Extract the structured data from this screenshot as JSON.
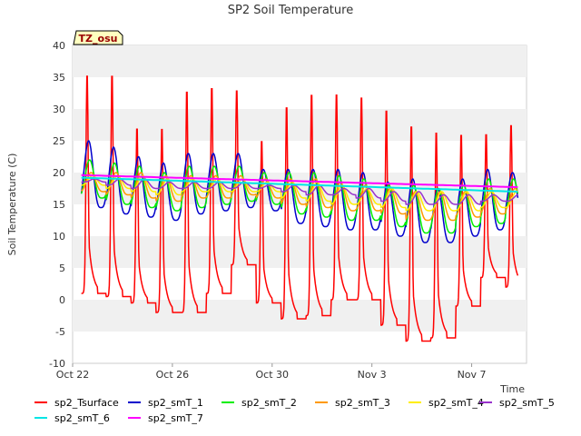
{
  "chart_data": {
    "type": "line",
    "title": "SP2 Soil Temperature",
    "xlabel": "Time",
    "ylabel": "Soil Temperature (C)",
    "ylim": [
      -10,
      40
    ],
    "xlim_days": [
      0,
      18.2
    ],
    "x_unit": "days since Oct 22",
    "x_ticks": [
      {
        "day": 0,
        "label": "Oct 22"
      },
      {
        "day": 4,
        "label": "Oct 26"
      },
      {
        "day": 8,
        "label": "Oct 30"
      },
      {
        "day": 12,
        "label": "Nov 3"
      },
      {
        "day": 16,
        "label": "Nov 7"
      }
    ],
    "y_ticks": [
      -10,
      -5,
      0,
      5,
      10,
      15,
      20,
      25,
      30,
      35,
      40
    ],
    "grid": "horizontal bands",
    "annotation": "TZ_osu",
    "series": [
      {
        "name": "sp2_Tsurface",
        "color": "#ff0000",
        "daily_max": [
          36,
          36,
          27.5,
          27.5,
          33.5,
          34,
          33.5,
          25.5,
          31,
          33,
          33,
          32.5,
          30.5,
          28,
          27,
          26.5,
          26.5,
          28
        ],
        "daily_min": [
          1,
          0.5,
          -0.5,
          -2,
          -2,
          1,
          5.5,
          -0.5,
          -3,
          -2.5,
          0,
          0,
          -4,
          -6.5,
          -6,
          -1,
          3.5,
          2
        ]
      },
      {
        "name": "sp2_smT_1",
        "color": "#0000cc",
        "daily_max": [
          25,
          24,
          22.5,
          21.5,
          23,
          23,
          23,
          20.5,
          20.5,
          20.5,
          20.5,
          20,
          18.5,
          19,
          17.5,
          19,
          20.5,
          20
        ],
        "daily_min": [
          14.5,
          13.5,
          13,
          12.5,
          13.5,
          14,
          14.5,
          14,
          12,
          11.5,
          11,
          11,
          10,
          9,
          9,
          10,
          11,
          12.5
        ]
      },
      {
        "name": "sp2_smT_2",
        "color": "#00ee00",
        "daily_max": [
          22,
          21.5,
          21,
          20,
          21,
          21,
          21,
          20,
          20,
          20,
          19.5,
          19,
          18,
          18,
          17.5,
          18,
          19,
          19
        ],
        "daily_min": [
          16,
          15,
          14.5,
          14,
          14.5,
          15,
          15.5,
          15,
          13.5,
          13,
          12.5,
          12.5,
          11.5,
          10.5,
          10.5,
          11.5,
          12,
          13
        ]
      },
      {
        "name": "sp2_smT_3",
        "color": "#ff9900",
        "daily_max": [
          20,
          20,
          20,
          19.5,
          19.5,
          19.5,
          19.5,
          19,
          19,
          19,
          18.5,
          18,
          17.5,
          17,
          17,
          17,
          17.5,
          17.5
        ],
        "daily_min": [
          17,
          16.5,
          16,
          15.5,
          16,
          16,
          16.5,
          16,
          15,
          14.5,
          14,
          14,
          13.5,
          12.5,
          12.5,
          13,
          13.5,
          14
        ]
      },
      {
        "name": "sp2_smT_4",
        "color": "#ffee00",
        "daily_max": [
          19.5,
          19.5,
          19.5,
          19,
          19,
          19,
          19,
          18.5,
          18.5,
          18.5,
          18,
          17.5,
          17.5,
          17,
          17,
          17,
          17,
          17
        ],
        "daily_min": [
          18,
          17.5,
          17,
          16.5,
          17,
          17,
          17,
          17,
          16,
          15.5,
          15,
          15,
          14.5,
          14,
          14,
          14,
          14.5,
          14.5
        ]
      },
      {
        "name": "sp2_smT_5",
        "color": "#9933cc",
        "daily_max": [
          19,
          19,
          19,
          18.5,
          18.5,
          18.5,
          18.5,
          18,
          18,
          18,
          17.5,
          17.5,
          17,
          17,
          16.5,
          16.5,
          16.5,
          16.5
        ],
        "daily_min": [
          18.5,
          18,
          17.5,
          17.5,
          17.5,
          17.5,
          17.5,
          17.5,
          17,
          16.5,
          16.5,
          16,
          15.5,
          15,
          15,
          15,
          15.5,
          15.5
        ]
      },
      {
        "name": "sp2_smT_6",
        "color": "#00e5e5",
        "start": 19.2,
        "end": 17.0
      },
      {
        "name": "sp2_smT_7",
        "color": "#ff00ff",
        "start": 19.6,
        "end": 17.7
      }
    ]
  }
}
